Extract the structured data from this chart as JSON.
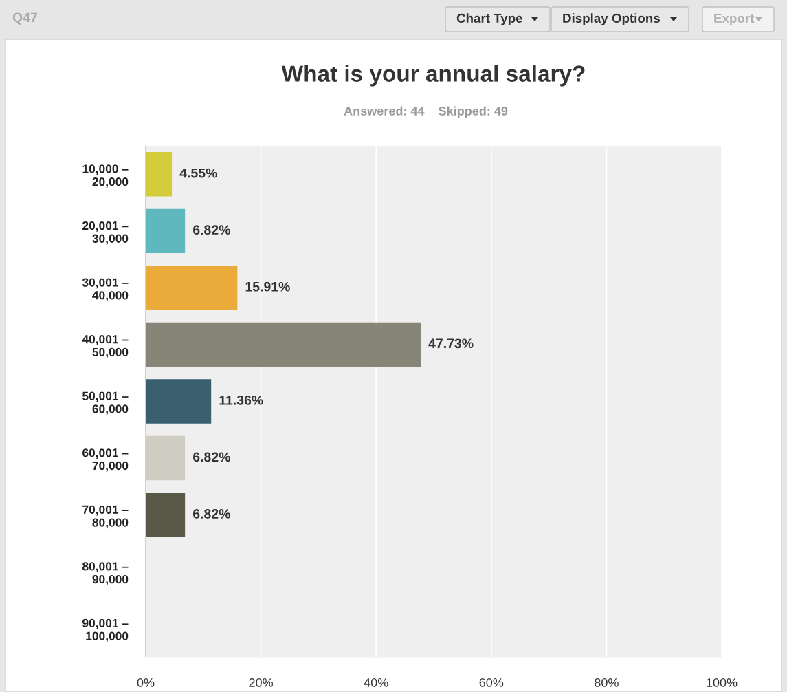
{
  "chart_data": {
    "type": "bar",
    "orientation": "horizontal",
    "title": "What is your annual salary?",
    "subtitle": "Answered: 44    Skipped: 49",
    "annotations": [
      "Q47",
      "Chart Type",
      "Display Options",
      "Export"
    ],
    "categories": [
      "10,000 –\n20,000",
      "20,001 –\n30,000",
      "30,001 –\n40,000",
      "40,001 –\n50,000",
      "50,001 –\n60,000",
      "60,001 –\n70,000",
      "70,001 –\n80,000",
      "80,001 –\n90,000",
      "90,001 –\n100,000"
    ],
    "values": [
      4.55,
      6.82,
      15.91,
      47.73,
      11.36,
      6.82,
      6.82,
      0,
      0
    ],
    "value_labels": [
      "4.55%",
      "6.82%",
      "15.91%",
      "47.73%",
      "11.36%",
      "6.82%",
      "6.82%",
      null,
      null
    ],
    "colors": [
      "#d3cd3b",
      "#5fb8bd",
      "#eaab3a",
      "#878578",
      "#3a5f6e",
      "#cfcdc1",
      "#5a5849",
      "#888888",
      "#888888"
    ],
    "xlim": [
      0,
      100
    ],
    "xticks": [
      {
        "value": 0,
        "label": "0%"
      },
      {
        "value": 20,
        "label": "20%"
      },
      {
        "value": 40,
        "label": "40%"
      },
      {
        "value": 60,
        "label": "60%"
      },
      {
        "value": 80,
        "label": "80%"
      },
      {
        "value": 100,
        "label": "100%"
      }
    ],
    "grid": "x"
  }
}
